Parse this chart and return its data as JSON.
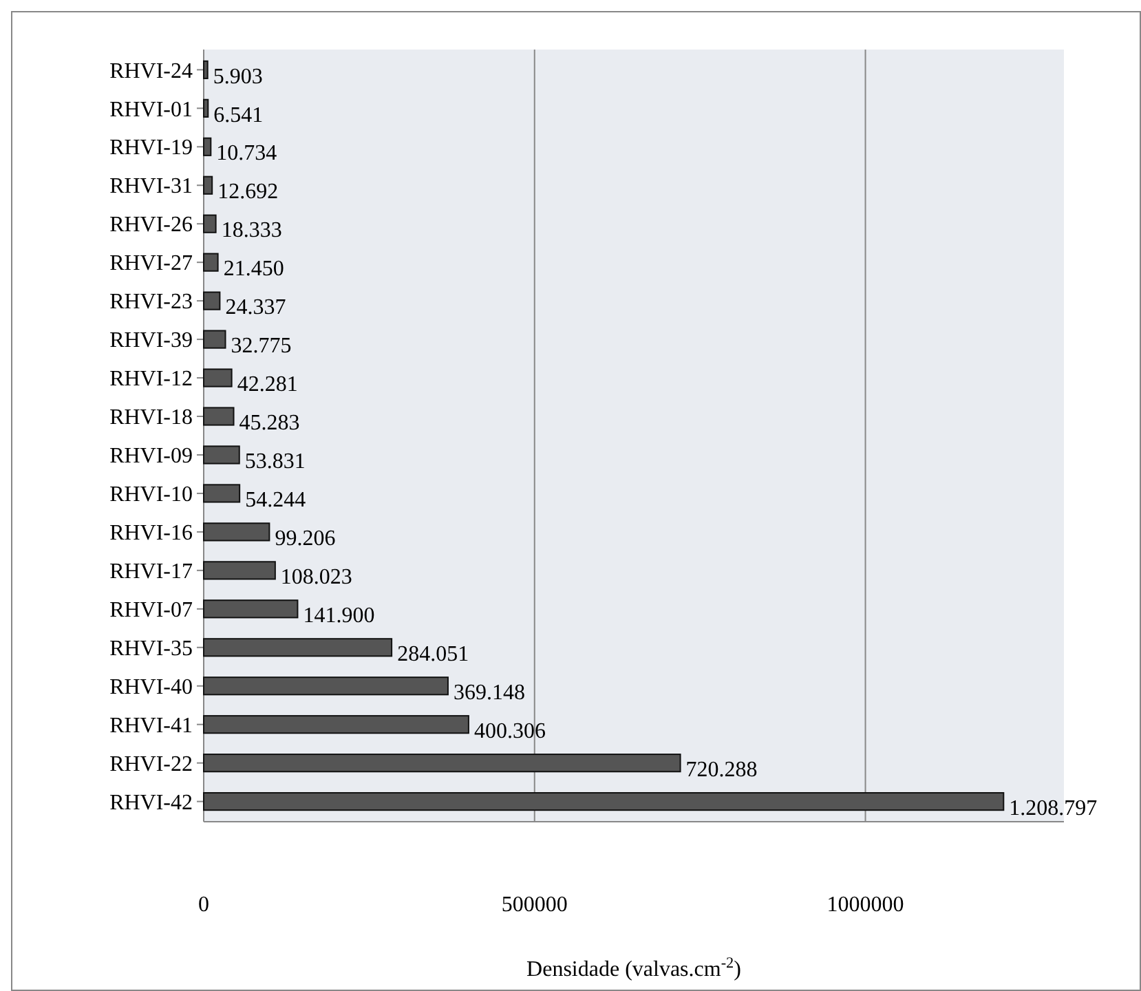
{
  "chart_data": {
    "type": "bar",
    "orientation": "horizontal",
    "xlabel": "Densidade (valvas.cm$^{-2}$)",
    "categories": [
      "RHVI-24",
      "RHVI-01",
      "RHVI-19",
      "RHVI-31",
      "RHVI-26",
      "RHVI-27",
      "RHVI-23",
      "RHVI-39",
      "RHVI-12",
      "RHVI-18",
      "RHVI-09",
      "RHVI-10",
      "RHVI-16",
      "RHVI-17",
      "RHVI-07",
      "RHVI-35",
      "RHVI-40",
      "RHVI-41",
      "RHVI-22",
      "RHVI-42"
    ],
    "values": [
      5903,
      6541,
      10734,
      12692,
      18333,
      21450,
      24337,
      32775,
      42281,
      45283,
      53831,
      54244,
      99206,
      108023,
      141900,
      284051,
      369148,
      400306,
      720288,
      1208797
    ],
    "value_labels": [
      "5.903",
      "6.541",
      "10.734",
      "12.692",
      "18.333",
      "21.450",
      "24.337",
      "32.775",
      "42.281",
      "45.283",
      "53.831",
      "54.244",
      "99.206",
      "108.023",
      "141.900",
      "284.051",
      "369.148",
      "400.306",
      "720.288",
      "1.208.797"
    ],
    "color": "#555555",
    "xlim": [
      0,
      1300000
    ],
    "xticks": [
      0,
      500000,
      1000000
    ],
    "grid": "x"
  }
}
